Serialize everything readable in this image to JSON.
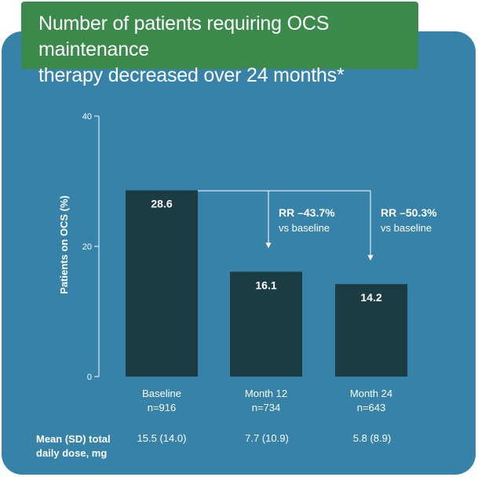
{
  "title": {
    "line1": "Number of patients requiring OCS maintenance",
    "line2": "therapy decreased over 24 months*"
  },
  "colors": {
    "panel": "#3682a8",
    "title_bg": "#3b8a4b",
    "bar": "#1c3c44",
    "text": "#ffffff"
  },
  "chart_data": {
    "type": "bar",
    "ylabel": "Patients on OCS (%)",
    "ylim": [
      0,
      40
    ],
    "yticks": [
      "0",
      "20",
      "40"
    ],
    "grid": false,
    "categories": [
      {
        "label": "Baseline",
        "n": "n=916"
      },
      {
        "label": "Month 12",
        "n": "n=734"
      },
      {
        "label": "Month 24",
        "n": "n=643"
      }
    ],
    "values": [
      28.6,
      16.1,
      14.2
    ],
    "value_labels": [
      "28.6",
      "16.1",
      "14.2"
    ],
    "annotations": [
      {
        "target": "Month 12",
        "rr": "RR –43.7%",
        "ref": "vs baseline"
      },
      {
        "target": "Month 24",
        "rr": "RR –50.3%",
        "ref": "vs baseline"
      }
    ]
  },
  "footer": {
    "label_line1": "Mean (SD) total",
    "label_line2": "daily dose, mg",
    "values": [
      "15.5 (14.0)",
      "7.7 (10.9)",
      "5.8 (8.9)"
    ]
  }
}
